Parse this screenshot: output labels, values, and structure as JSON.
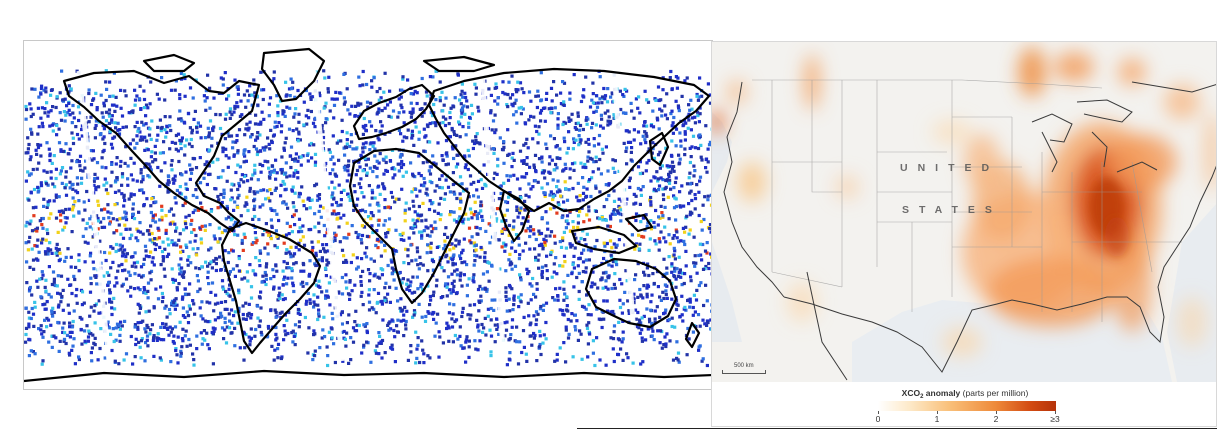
{
  "left_map": {
    "projection": "equirectangular",
    "colormap": [
      "blue",
      "cyan",
      "yellow",
      "red"
    ],
    "background": "#ffffff",
    "coastline_color": "#000000"
  },
  "right_map": {
    "country_label": [
      "UNITED",
      "STATES"
    ],
    "scale_label": "500 km",
    "legend": {
      "title_bold": "XCO",
      "title_subscript": "2",
      "title_bold_rest": " anomaly",
      "title_rest": " (parts per million)",
      "ticks": [
        "0",
        "1",
        "2",
        "≥3"
      ],
      "colors": [
        "#ffffff",
        "#fde9c8",
        "#f9c07a",
        "#ee8a3a",
        "#d24a12",
        "#b53309"
      ]
    }
  }
}
